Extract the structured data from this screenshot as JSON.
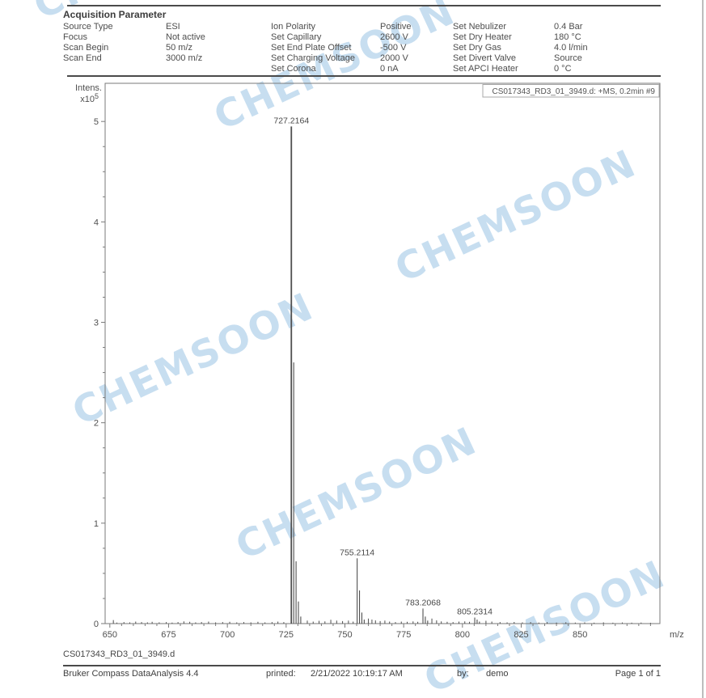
{
  "watermark": "CHEMSOON",
  "header": {
    "title": "Acquisition Parameter"
  },
  "params": {
    "col1": [
      {
        "label": "Source Type",
        "value": "ESI"
      },
      {
        "label": "Focus",
        "value": "Not active"
      },
      {
        "label": "Scan Begin",
        "value": "50 m/z"
      },
      {
        "label": "Scan End",
        "value": "3000 m/z"
      }
    ],
    "col2": [
      {
        "label": "Ion Polarity",
        "value": "Positive"
      },
      {
        "label": "Set Capillary",
        "value": "2600 V"
      },
      {
        "label": "Set End Plate Offset",
        "value": "-500 V"
      },
      {
        "label": "Set Charging Voltage",
        "value": "2000 V"
      },
      {
        "label": "Set Corona",
        "value": "0 nA"
      }
    ],
    "col3": [
      {
        "label": "Set Nebulizer",
        "value": "0.4 Bar"
      },
      {
        "label": "Set Dry Heater",
        "value": "180 °C"
      },
      {
        "label": "Set Dry Gas",
        "value": "4.0 l/min"
      },
      {
        "label": "Set Divert Valve",
        "value": "Source"
      },
      {
        "label": "Set APCI Heater",
        "value": "0 °C"
      }
    ]
  },
  "chart_data": {
    "type": "bar",
    "subtype": "mass-spectrum-sticks",
    "title": "",
    "xlabel": "m/z",
    "ylabel": "Intens.",
    "y_scale_label": "x10",
    "y_scale_exponent": "5",
    "annotation": "CS017343_RD3_01_3949.d: +MS, 0.2min #9",
    "xlim": [
      648,
      884
    ],
    "ylim": [
      0,
      5.38
    ],
    "x_major_ticks": [
      650,
      675,
      700,
      725,
      750,
      775,
      800,
      825,
      850
    ],
    "x_minor_step": 5,
    "x_minor_range": [
      650,
      880
    ],
    "y_major_ticks": [
      0,
      1,
      2,
      3,
      4,
      5
    ],
    "y_minor_step": 0.25,
    "grid": false,
    "legend": false,
    "axis_color": "#7a7a7a",
    "tick_text_color": "#4f4f4f",
    "peak_color": "#4f4f4f",
    "peaks": [
      {
        "mz": 727.2164,
        "intensity": 4.95,
        "label": "727.2164"
      },
      {
        "mz": 728.22,
        "intensity": 2.6
      },
      {
        "mz": 729.22,
        "intensity": 0.62
      },
      {
        "mz": 730.22,
        "intensity": 0.22
      },
      {
        "mz": 731.22,
        "intensity": 0.07
      },
      {
        "mz": 755.2114,
        "intensity": 0.65,
        "label": "755.2114"
      },
      {
        "mz": 756.21,
        "intensity": 0.33
      },
      {
        "mz": 757.21,
        "intensity": 0.11
      },
      {
        "mz": 758.21,
        "intensity": 0.04
      },
      {
        "mz": 783.2068,
        "intensity": 0.15,
        "label": "783.2068"
      },
      {
        "mz": 784.21,
        "intensity": 0.07
      },
      {
        "mz": 785.21,
        "intensity": 0.03
      },
      {
        "mz": 805.2314,
        "intensity": 0.06,
        "label": "805.2314"
      },
      {
        "mz": 806.23,
        "intensity": 0.04
      },
      {
        "mz": 807.23,
        "intensity": 0.02
      }
    ],
    "noise": [
      [
        651.5,
        0.035
      ],
      [
        653,
        0.01
      ],
      [
        656,
        0.015
      ],
      [
        658.5,
        0.012
      ],
      [
        661,
        0.02
      ],
      [
        663.5,
        0.015
      ],
      [
        666,
        0.012
      ],
      [
        668,
        0.018
      ],
      [
        671,
        0.012
      ],
      [
        674,
        0.015
      ],
      [
        676.5,
        0.01
      ],
      [
        679,
        0.015
      ],
      [
        681.5,
        0.022
      ],
      [
        684,
        0.018
      ],
      [
        686.5,
        0.012
      ],
      [
        689,
        0.015
      ],
      [
        692,
        0.02
      ],
      [
        695,
        0.012
      ],
      [
        698,
        0.015
      ],
      [
        701,
        0.018
      ],
      [
        704,
        0.012
      ],
      [
        707,
        0.015
      ],
      [
        710,
        0.012
      ],
      [
        713,
        0.018
      ],
      [
        716,
        0.012
      ],
      [
        719,
        0.015
      ],
      [
        721.5,
        0.02
      ],
      [
        724,
        0.015
      ],
      [
        734,
        0.03
      ],
      [
        736.5,
        0.02
      ],
      [
        739,
        0.028
      ],
      [
        741.5,
        0.022
      ],
      [
        744,
        0.038
      ],
      [
        746.5,
        0.03
      ],
      [
        749,
        0.025
      ],
      [
        751.5,
        0.03
      ],
      [
        753.5,
        0.02
      ],
      [
        760,
        0.05
      ],
      [
        761.5,
        0.04
      ],
      [
        763,
        0.032
      ],
      [
        765,
        0.025
      ],
      [
        767,
        0.03
      ],
      [
        769,
        0.02
      ],
      [
        771.5,
        0.015
      ],
      [
        774,
        0.02
      ],
      [
        776.5,
        0.018
      ],
      [
        779,
        0.022
      ],
      [
        781,
        0.018
      ],
      [
        787,
        0.05
      ],
      [
        789,
        0.032
      ],
      [
        791,
        0.022
      ],
      [
        793.5,
        0.018
      ],
      [
        796,
        0.015
      ],
      [
        798.5,
        0.02
      ],
      [
        801,
        0.022
      ],
      [
        803,
        0.018
      ],
      [
        810,
        0.028
      ],
      [
        812.5,
        0.02
      ],
      [
        816,
        0.015
      ],
      [
        819,
        0.012
      ],
      [
        822,
        0.016
      ],
      [
        825.5,
        0.012
      ],
      [
        829,
        0.015
      ],
      [
        832.5,
        0.01
      ],
      [
        836,
        0.014
      ],
      [
        840,
        0.01
      ],
      [
        844,
        0.013
      ],
      [
        848,
        0.01
      ],
      [
        852,
        0.012
      ],
      [
        856,
        0.009
      ],
      [
        860,
        0.012
      ],
      [
        864,
        0.009
      ],
      [
        868,
        0.011
      ],
      [
        872,
        0.009
      ],
      [
        876,
        0.01
      ],
      [
        880,
        0.008
      ]
    ]
  },
  "caption": {
    "filename": "CS017343_RD3_01_3949.d"
  },
  "footer": {
    "app": "Bruker Compass DataAnalysis 4.4",
    "printed_label": "printed:",
    "printed_value": "2/21/2022 10:19:17 AM",
    "by_label": "by:",
    "by_value": "demo",
    "page": "Page 1 of 1"
  }
}
